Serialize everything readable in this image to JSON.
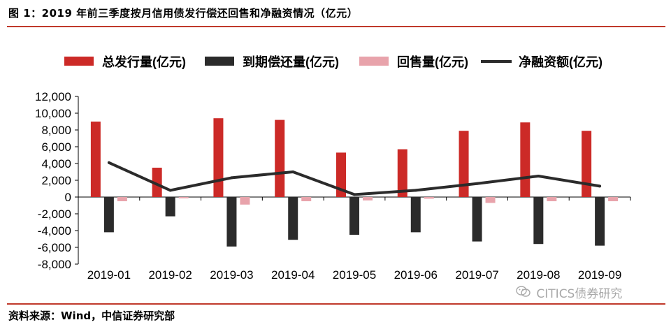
{
  "figure": {
    "title": "图 1：2019 年前三季度按月信用债发行偿还回售和净融资情况（亿元）",
    "source": "资料来源：Wind，中信证券研究部",
    "watermark": "CITICS债券研究",
    "watermark_icon": "wechat-icon"
  },
  "colors": {
    "issuance": "#cc2a27",
    "maturity": "#2b2b2b",
    "putback": "#e8a3ab",
    "net": "#2b2b2b",
    "rule": "#c0392b"
  },
  "chart_data": {
    "type": "bar",
    "title": "",
    "xlabel": "",
    "ylabel": "",
    "ylim": [
      -8000,
      12000
    ],
    "yticks": [
      12000,
      10000,
      8000,
      6000,
      4000,
      2000,
      0,
      -2000,
      -4000,
      -6000,
      -8000
    ],
    "ytick_labels": [
      "12,000",
      "10,000",
      "8,000",
      "6,000",
      "4,000",
      "2,000",
      "0",
      "-2,000",
      "-4,000",
      "-6,000",
      "-8,000"
    ],
    "grid": false,
    "legend_position": "top",
    "categories": [
      "2019-01",
      "2019-02",
      "2019-03",
      "2019-04",
      "2019-05",
      "2019-06",
      "2019-07",
      "2019-08",
      "2019-09"
    ],
    "series": [
      {
        "name": "总发行量(亿元)",
        "type": "bar",
        "color": "#cc2a27",
        "values": [
          9000,
          3500,
          9400,
          9200,
          5300,
          5700,
          7900,
          8900,
          7900
        ]
      },
      {
        "name": "到期偿还量(亿元)",
        "type": "bar",
        "color": "#2b2b2b",
        "values": [
          -4200,
          -2300,
          -5900,
          -5100,
          -4500,
          -4200,
          -5300,
          -5600,
          -5800
        ]
      },
      {
        "name": "回售量(亿元)",
        "type": "bar",
        "color": "#e8a3ab",
        "values": [
          -500,
          -150,
          -900,
          -500,
          -400,
          -200,
          -700,
          -500,
          -500
        ]
      },
      {
        "name": "净融资额(亿元)",
        "type": "line",
        "color": "#2b2b2b",
        "values": [
          4100,
          800,
          2300,
          3000,
          300,
          800,
          1600,
          2500,
          1300
        ]
      }
    ]
  }
}
